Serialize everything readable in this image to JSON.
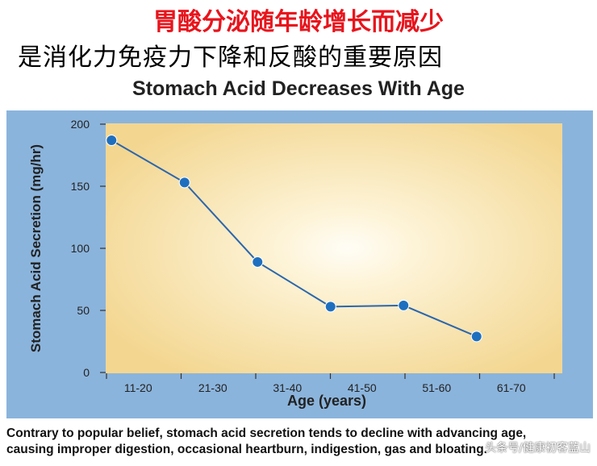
{
  "headline": "胃酸分泌随年龄增长而减少",
  "subheadline": "是消化力免疫力下降和反酸的重要原因",
  "caption": {
    "line1": "Contrary to popular belief, stomach acid secretion tends to decline with advancing age,",
    "line2": "causing improper digestion, occasional heartburn, indigestion, gas and bloating."
  },
  "watermark": "头条号/健康初客蓝山",
  "colors": {
    "headline": "#e8141c",
    "panel_border": "#8bb4dc",
    "plot_center": "#fffdf6",
    "plot_edge": "#f3d690",
    "line": "#2b66ad",
    "marker": "#1f6fbf"
  },
  "chart_data": {
    "type": "line",
    "title": "Stomach Acid Decreases With Age",
    "xlabel": "Age (years)",
    "ylabel": "Stomach Acid Secretion (mg/hr)",
    "categories": [
      "11-20",
      "21-30",
      "31-40",
      "41-50",
      "51-60",
      "61-70"
    ],
    "series": [
      {
        "values": [
          187,
          153,
          89,
          53,
          54,
          29
        ]
      }
    ],
    "yticks": [
      0,
      50,
      100,
      150,
      200
    ],
    "ylim": [
      0,
      200
    ],
    "grid": false,
    "legend": false
  }
}
